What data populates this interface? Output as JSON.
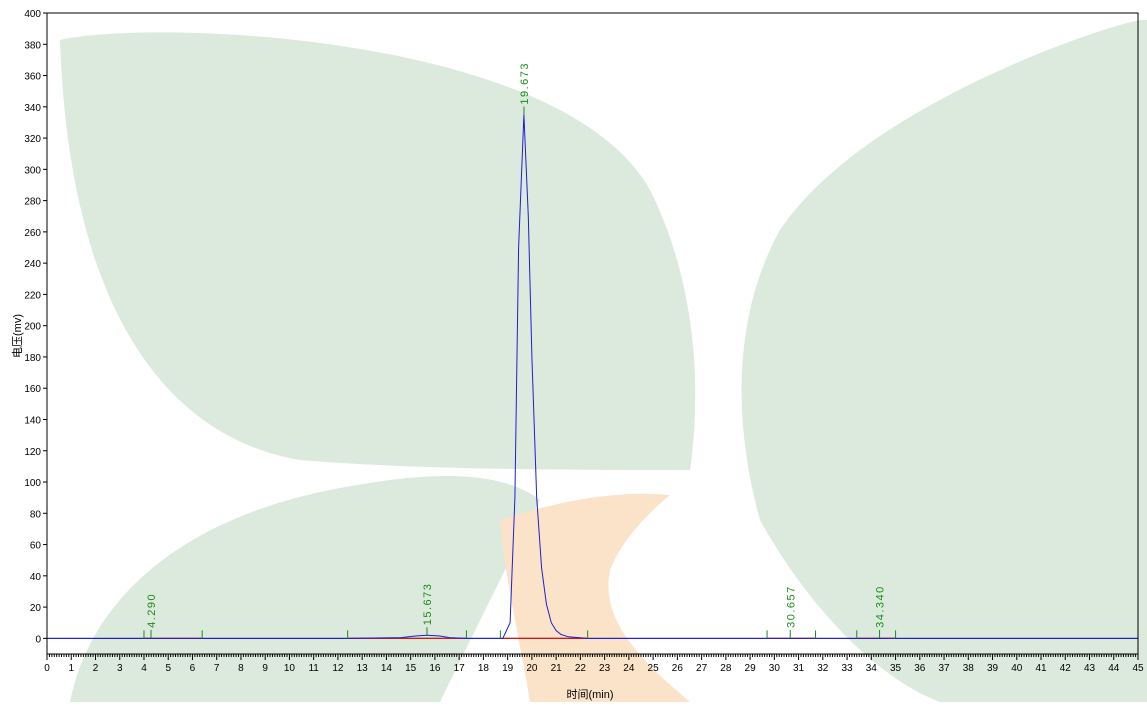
{
  "colors": {
    "signal": "#1f1fd0",
    "baseline": "#0000ff",
    "peak_label": "#1a8c1a",
    "peak_marker": "#1a8c1a",
    "integration_baseline": "#d01818",
    "axis": "#000000",
    "watermark_green": "#dce9dd",
    "watermark_orange": "#fbe3c9",
    "background": "#ffffff"
  },
  "chart_data": {
    "type": "line",
    "xlabel": "时间(min)",
    "ylabel": "电压(mv)",
    "xlim": [
      0,
      45
    ],
    "ylim": [
      -10,
      400
    ],
    "x_ticks": [
      0,
      1,
      2,
      3,
      4,
      5,
      6,
      7,
      8,
      9,
      10,
      11,
      12,
      13,
      14,
      15,
      16,
      17,
      18,
      19,
      20,
      21,
      22,
      23,
      24,
      25,
      26,
      27,
      28,
      29,
      30,
      31,
      32,
      33,
      34,
      35,
      36,
      37,
      38,
      39,
      40,
      41,
      42,
      43,
      44,
      45
    ],
    "y_ticks": [
      0,
      20,
      40,
      60,
      80,
      100,
      120,
      140,
      160,
      180,
      200,
      220,
      240,
      260,
      280,
      300,
      320,
      340,
      360,
      380,
      400
    ],
    "baseline_value": 0,
    "series": [
      {
        "x": [
          0,
          12.4,
          14.6,
          15.2,
          15.67,
          16.2,
          16.6,
          17.3,
          18.8,
          19.1,
          19.3,
          19.45,
          19.67,
          19.85,
          20.0,
          20.2,
          20.4,
          20.6,
          20.8,
          21.0,
          21.2,
          21.5,
          22.3,
          45
        ],
        "y": [
          0,
          0,
          0.5,
          1.5,
          2.0,
          1.5,
          0.5,
          0,
          0,
          10,
          90,
          250,
          335,
          270,
          180,
          90,
          45,
          22,
          10,
          5,
          2.5,
          1,
          0,
          0
        ]
      }
    ],
    "peaks": [
      {
        "rt": 4.29,
        "label": "4.290",
        "start": 4.0,
        "end": 6.4,
        "apex_mv": 0.3
      },
      {
        "rt": 15.673,
        "label": "15.673",
        "start": 12.4,
        "end": 17.3,
        "apex_mv": 2
      },
      {
        "rt": 19.673,
        "label": "19.673",
        "start": 18.7,
        "end": 22.3,
        "apex_mv": 335
      },
      {
        "rt": 30.657,
        "label": "30.657",
        "start": 29.7,
        "end": 31.7,
        "apex_mv": 0.3
      },
      {
        "rt": 34.34,
        "label": "34.340",
        "start": 33.4,
        "end": 35.0,
        "apex_mv": 0.3
      }
    ],
    "grid": false,
    "legend": "none"
  }
}
